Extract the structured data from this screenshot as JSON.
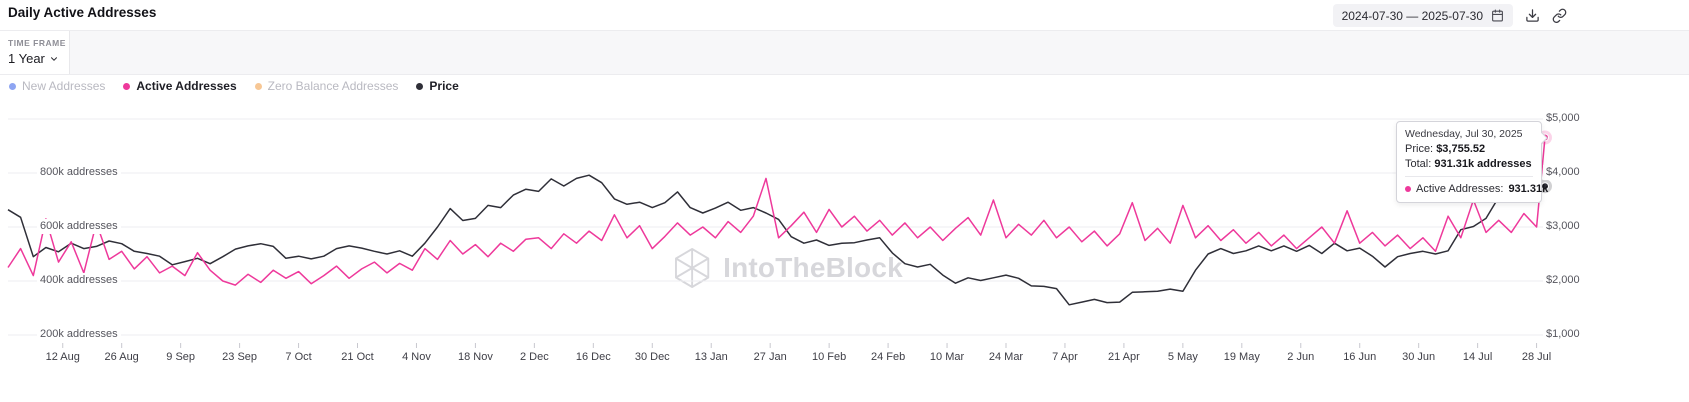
{
  "header": {
    "title": "Daily Active Addresses",
    "date_range": "2024-07-30 — 2025-07-30"
  },
  "timeframe": {
    "label": "TIME FRAME",
    "value": "1 Year"
  },
  "legend": {
    "items": [
      {
        "label": "New Addresses",
        "color": "#8ea5f2",
        "active": false
      },
      {
        "label": "Active Addresses",
        "color": "#ee399b",
        "active": true
      },
      {
        "label": "Zero Balance Addresses",
        "color": "#f7c795",
        "active": false
      },
      {
        "label": "Price",
        "color": "#2f2f38",
        "active": true
      }
    ]
  },
  "tooltip": {
    "date": "Wednesday, Jul 30, 2025",
    "price_label": "Price:",
    "price_value": "$3,755.52",
    "total_label": "Total:",
    "total_value": "931.31k addresses",
    "series_label": "Active Addresses:",
    "series_value": "931.31k"
  },
  "watermark": {
    "text": "IntoTheBlock"
  },
  "chart_data": {
    "type": "line",
    "title": "Daily Active Addresses",
    "x_start": "2024-07-30",
    "x_end": "2025-07-30",
    "grid": true,
    "legend_position": "top-left",
    "x_tick_labels": [
      "12 Aug",
      "26 Aug",
      "9 Sep",
      "23 Sep",
      "7 Oct",
      "21 Oct",
      "4 Nov",
      "18 Nov",
      "2 Dec",
      "16 Dec",
      "30 Dec",
      "13 Jan",
      "27 Jan",
      "10 Feb",
      "24 Feb",
      "10 Mar",
      "24 Mar",
      "7 Apr",
      "21 Apr",
      "5 May",
      "19 May",
      "2 Jun",
      "16 Jun",
      "30 Jun",
      "14 Jul",
      "28 Jul"
    ],
    "x_tick_day_offsets": [
      13,
      27,
      41,
      55,
      69,
      83,
      97,
      111,
      125,
      139,
      153,
      167,
      181,
      195,
      209,
      223,
      237,
      251,
      265,
      279,
      293,
      307,
      321,
      335,
      349,
      363
    ],
    "left_axis": {
      "tick_labels": [
        "800k addresses",
        "600k addresses",
        "400k addresses",
        "200k addresses"
      ],
      "tick_values_k": [
        800,
        600,
        400,
        200
      ],
      "range_k": [
        200,
        1000
      ]
    },
    "right_axis": {
      "tick_labels": [
        "$5,000",
        "$4,000",
        "$3,000",
        "$2,000",
        "$1,000"
      ],
      "tick_values": [
        5000,
        4000,
        3000,
        2000,
        1000
      ],
      "range": [
        1000,
        5000
      ]
    },
    "day_offsets": [
      0,
      3,
      6,
      9,
      12,
      15,
      18,
      21,
      24,
      27,
      30,
      33,
      36,
      39,
      42,
      45,
      48,
      51,
      54,
      57,
      60,
      63,
      66,
      69,
      72,
      75,
      78,
      81,
      84,
      87,
      90,
      93,
      96,
      99,
      102,
      105,
      108,
      111,
      114,
      117,
      120,
      123,
      126,
      129,
      132,
      135,
      138,
      141,
      144,
      147,
      150,
      153,
      156,
      159,
      162,
      165,
      168,
      171,
      174,
      177,
      180,
      183,
      186,
      189,
      192,
      195,
      198,
      201,
      204,
      207,
      210,
      213,
      216,
      219,
      222,
      225,
      228,
      231,
      234,
      237,
      240,
      243,
      246,
      249,
      252,
      255,
      258,
      261,
      264,
      267,
      270,
      273,
      276,
      279,
      282,
      285,
      288,
      291,
      294,
      297,
      300,
      303,
      306,
      309,
      312,
      315,
      318,
      321,
      324,
      327,
      330,
      333,
      336,
      339,
      342,
      345,
      348,
      351,
      354,
      357,
      360,
      363,
      365
    ],
    "series": [
      {
        "name": "Active Addresses",
        "color": "#ee399b",
        "axis": "left",
        "unit": "k addresses",
        "last_value_label": "931.31k",
        "values": [
          450,
          520,
          420,
          630,
          470,
          545,
          430,
          615,
          480,
          510,
          445,
          490,
          430,
          455,
          420,
          505,
          440,
          400,
          385,
          425,
          395,
          440,
          410,
          435,
          390,
          420,
          455,
          410,
          445,
          470,
          430,
          465,
          440,
          520,
          480,
          550,
          500,
          535,
          490,
          540,
          510,
          555,
          560,
          520,
          575,
          540,
          585,
          550,
          645,
          560,
          605,
          520,
          565,
          615,
          570,
          600,
          560,
          620,
          580,
          640,
          780,
          560,
          605,
          655,
          580,
          665,
          600,
          640,
          585,
          625,
          570,
          615,
          560,
          600,
          550,
          595,
          635,
          570,
          700,
          560,
          610,
          570,
          625,
          560,
          600,
          545,
          585,
          530,
          575,
          690,
          550,
          595,
          540,
          680,
          560,
          605,
          550,
          590,
          540,
          580,
          530,
          570,
          520,
          560,
          600,
          540,
          660,
          540,
          580,
          530,
          570,
          520,
          560,
          510,
          640,
          560,
          700,
          580,
          625,
          580,
          650,
          600,
          931.31
        ]
      },
      {
        "name": "Price",
        "color": "#2f2f38",
        "axis": "right",
        "unit": "USD",
        "last_value_label": "$3,755.52",
        "values": [
          3320,
          3180,
          2450,
          2620,
          2540,
          2700,
          2600,
          2640,
          2740,
          2690,
          2550,
          2510,
          2460,
          2300,
          2360,
          2420,
          2320,
          2450,
          2590,
          2650,
          2690,
          2640,
          2420,
          2460,
          2410,
          2460,
          2600,
          2650,
          2610,
          2550,
          2500,
          2560,
          2460,
          2700,
          3000,
          3340,
          3120,
          3160,
          3400,
          3360,
          3590,
          3700,
          3660,
          3890,
          3760,
          3900,
          3960,
          3820,
          3520,
          3420,
          3460,
          3360,
          3450,
          3650,
          3360,
          3260,
          3350,
          3460,
          3310,
          3360,
          3260,
          3140,
          2820,
          2700,
          2760,
          2660,
          2700,
          2710,
          2760,
          2800,
          2520,
          2320,
          2260,
          2310,
          2110,
          1960,
          2060,
          2010,
          2060,
          2110,
          2050,
          1910,
          1900,
          1860,
          1560,
          1610,
          1660,
          1600,
          1610,
          1790,
          1800,
          1810,
          1850,
          1810,
          2200,
          2500,
          2600,
          2510,
          2560,
          2650,
          2560,
          2650,
          2550,
          2660,
          2510,
          2700,
          2560,
          2610,
          2460,
          2260,
          2450,
          2510,
          2550,
          2500,
          2560,
          2950,
          3010,
          3160,
          3550,
          3700,
          3610,
          3700,
          3755.52
        ]
      }
    ]
  }
}
